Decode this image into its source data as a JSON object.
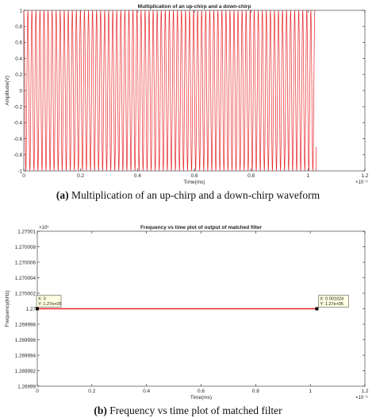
{
  "chart_data": [
    {
      "type": "line",
      "title": "Multiplication of an up-chirp and a down-chirp",
      "xlabel": "Time(ms)",
      "ylabel": "Amplitude(V)",
      "x_exponent": "×10⁻³",
      "xlim": [
        0,
        0.0012
      ],
      "ylim": [
        -1,
        1
      ],
      "xticks": [
        0,
        0.0002,
        0.0004,
        0.0006,
        0.0008,
        0.001,
        0.0012
      ],
      "xtick_labels": [
        "0",
        "0.2",
        "0.4",
        "0.6",
        "0.8",
        "1",
        "1.2"
      ],
      "yticks": [
        -1,
        -0.8,
        -0.6,
        -0.4,
        -0.2,
        0,
        0.2,
        0.4,
        0.6,
        0.8,
        1
      ],
      "ytick_labels": [
        "-1",
        "-0.8",
        "-0.6",
        "-0.4",
        "-0.2",
        "0",
        "0.2",
        "0.4",
        "0.6",
        "0.8",
        "1"
      ],
      "grid": false,
      "series": [
        {
          "color": "#e8262a",
          "signal": "oscillating between -1 and 1",
          "x_start": 0,
          "x_end": 0.001024,
          "cycles": 72
        }
      ],
      "caption_label": "(a)",
      "caption_text": "Multiplication of an up-chirp and a down-chirp waveform"
    },
    {
      "type": "line",
      "title": "Frequency vs time plot of output of matched filter",
      "xlabel": "Time(ms)",
      "ylabel": "Frequency(kHz)",
      "x_exponent": "×10⁻³",
      "y_exponent": "×10⁵",
      "xlim": [
        0,
        0.0012
      ],
      "ylim": [
        1.26999,
        1.27001
      ],
      "xticks": [
        0,
        0.0002,
        0.0004,
        0.0006,
        0.0008,
        0.001,
        0.0012
      ],
      "xtick_labels": [
        "0",
        "0.2",
        "0.4",
        "0.6",
        "0.8",
        "1",
        "1.2"
      ],
      "yticks": [
        1.26999,
        1.269992,
        1.269994,
        1.269996,
        1.269998,
        1.27,
        1.270002,
        1.270004,
        1.270006,
        1.270008,
        1.27001
      ],
      "ytick_labels": [
        "1.26999",
        "1.269992",
        "1.269994",
        "1.269996",
        "1.269998",
        "1.27",
        "1.270002",
        "1.270004",
        "1.270006",
        "1.270008",
        "1.27001"
      ],
      "grid": false,
      "series": [
        {
          "color": "#e8262a",
          "x": [
            0,
            0.001024
          ],
          "y": [
            1.27,
            1.27
          ]
        }
      ],
      "datatips": [
        {
          "x": 0,
          "y": 1.27,
          "line1": "X: 0",
          "line2": "Y: 1.27e+05",
          "placement": "above-right"
        },
        {
          "x": 0.001024,
          "y": 1.27,
          "line1": "X: 0.001024",
          "line2": "Y: 1.27e+05",
          "placement": "above-right"
        }
      ],
      "caption_label": "(b)",
      "caption_text": "Frequency vs time plot of matched filter"
    }
  ]
}
